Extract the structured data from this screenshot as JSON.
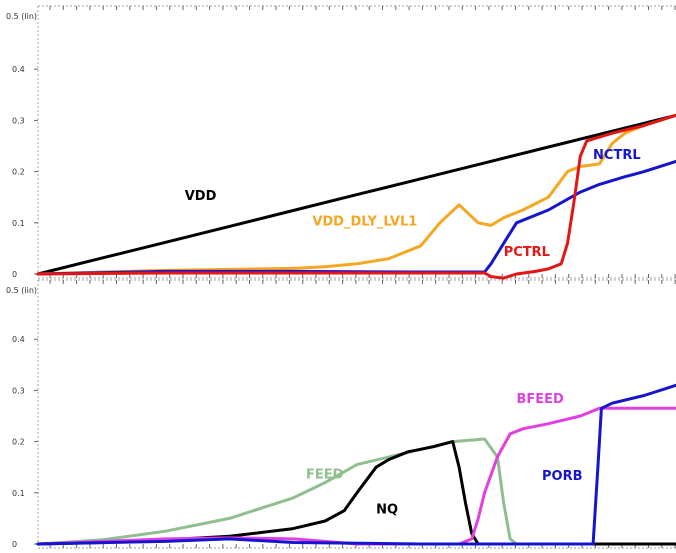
{
  "chart_data": [
    {
      "type": "line",
      "scale_label": "0.5 (lin)",
      "ylim": [
        0,
        0.5
      ],
      "xlim": [
        0,
        100
      ],
      "yticks": [
        {
          "value": 0,
          "label": "0"
        },
        {
          "value": 0.1,
          "label": "0.1"
        },
        {
          "value": 0.2,
          "label": "0.2"
        },
        {
          "value": 0.3,
          "label": "0.3"
        },
        {
          "value": 0.4,
          "label": "0.4"
        }
      ],
      "grid": false,
      "series": [
        {
          "name": "VDD",
          "color": "#000000",
          "x": [
            0,
            10,
            20,
            30,
            40,
            50,
            60,
            70,
            80,
            90,
            100
          ],
          "y": [
            0,
            0.031,
            0.062,
            0.093,
            0.124,
            0.155,
            0.186,
            0.217,
            0.248,
            0.279,
            0.31
          ]
        },
        {
          "name": "VDD_DLY_LVL1",
          "color": "#f5a623",
          "x": [
            0,
            10,
            20,
            30,
            40,
            45,
            50,
            55,
            60,
            63,
            66,
            69,
            71,
            73,
            76,
            80,
            83,
            85,
            88,
            90,
            92,
            95,
            100
          ],
          "y": [
            0,
            0.004,
            0.007,
            0.009,
            0.011,
            0.014,
            0.02,
            0.03,
            0.055,
            0.1,
            0.135,
            0.1,
            0.095,
            0.11,
            0.125,
            0.15,
            0.2,
            0.21,
            0.215,
            0.255,
            0.275,
            0.29,
            0.31
          ]
        },
        {
          "name": "NCTRL",
          "color": "#1515d0",
          "x": [
            0,
            20,
            40,
            60,
            70,
            71,
            72,
            73,
            75,
            80,
            85,
            88,
            92,
            95,
            100
          ],
          "y": [
            0,
            0.005,
            0.005,
            0.004,
            0.004,
            0.02,
            0.04,
            0.06,
            0.1,
            0.125,
            0.16,
            0.175,
            0.19,
            0.2,
            0.22
          ]
        },
        {
          "name": "PCTRL",
          "color": "#e51515",
          "x": [
            0,
            20,
            40,
            60,
            70,
            71,
            73,
            75,
            78,
            80,
            82,
            83,
            84,
            85,
            86,
            90,
            95,
            100
          ],
          "y": [
            0,
            0.002,
            0.002,
            0.002,
            0.002,
            -0.005,
            -0.008,
            0.0,
            0.005,
            0.01,
            0.02,
            0.06,
            0.14,
            0.23,
            0.26,
            0.275,
            0.29,
            0.31
          ]
        }
      ],
      "labels": [
        {
          "text": "VDD",
          "series": "VDD",
          "x": 23,
          "y": 0.145
        },
        {
          "text": "VDD_DLY_LVL1",
          "series": "VDD_DLY_LVL1",
          "x": 43,
          "y": 0.095
        },
        {
          "text": "NCTRL",
          "series": "NCTRL",
          "x": 87,
          "y": 0.225
        },
        {
          "text": "PCTRL",
          "series": "PCTRL",
          "x": 73,
          "y": 0.035
        }
      ]
    },
    {
      "type": "line",
      "scale_label": "0.5 (lin)",
      "ylim": [
        0,
        0.5
      ],
      "xlim": [
        0,
        100
      ],
      "yticks": [
        {
          "value": 0,
          "label": "0"
        },
        {
          "value": 0.1,
          "label": "0.1"
        },
        {
          "value": 0.2,
          "label": "0.2"
        },
        {
          "value": 0.3,
          "label": "0.3"
        },
        {
          "value": 0.4,
          "label": "0.4"
        }
      ],
      "grid": false,
      "series": [
        {
          "name": "FEED",
          "color": "#8fbf8f",
          "x": [
            0,
            10,
            20,
            30,
            40,
            45,
            50,
            55,
            60,
            65,
            70,
            72,
            73,
            74,
            75,
            100
          ],
          "y": [
            0,
            0.008,
            0.025,
            0.05,
            0.09,
            0.12,
            0.155,
            0.17,
            0.185,
            0.2,
            0.205,
            0.17,
            0.08,
            0.01,
            0.0,
            0.0
          ]
        },
        {
          "name": "NQ",
          "color": "#000000",
          "x": [
            0,
            10,
            20,
            30,
            40,
            45,
            48,
            50,
            53,
            55,
            58,
            62,
            65,
            66,
            67,
            68,
            69,
            100
          ],
          "y": [
            0,
            0.003,
            0.008,
            0.015,
            0.03,
            0.045,
            0.065,
            0.1,
            0.15,
            0.165,
            0.18,
            0.19,
            0.2,
            0.15,
            0.08,
            0.02,
            0.0,
            0.0
          ]
        },
        {
          "name": "BFEED",
          "color": "#e040e0",
          "x": [
            0,
            20,
            30,
            40,
            45,
            50,
            60,
            66,
            68,
            69,
            70,
            72,
            74,
            76,
            80,
            85,
            88,
            100
          ],
          "y": [
            0,
            0.01,
            0.012,
            0.01,
            0.005,
            0.0,
            0.0,
            0.0,
            0.01,
            0.05,
            0.1,
            0.17,
            0.215,
            0.225,
            0.235,
            0.25,
            0.265,
            0.265
          ]
        },
        {
          "name": "PORB",
          "color": "#1515d0",
          "x": [
            0,
            20,
            30,
            40,
            60,
            87,
            87.8,
            88.3,
            90,
            95,
            100
          ],
          "y": [
            0,
            0.005,
            0.01,
            0.003,
            0.0,
            0.0,
            0.16,
            0.265,
            0.275,
            0.29,
            0.31
          ]
        }
      ],
      "labels": [
        {
          "text": "BFEED",
          "series": "BFEED",
          "x": 75,
          "y": 0.275
        },
        {
          "text": "FEED",
          "series": "FEED",
          "x": 42,
          "y": 0.128
        },
        {
          "text": "NQ",
          "series": "NQ",
          "x": 53,
          "y": 0.06
        },
        {
          "text": "PORB",
          "series": "PORB",
          "x": 79,
          "y": 0.125
        }
      ]
    }
  ]
}
